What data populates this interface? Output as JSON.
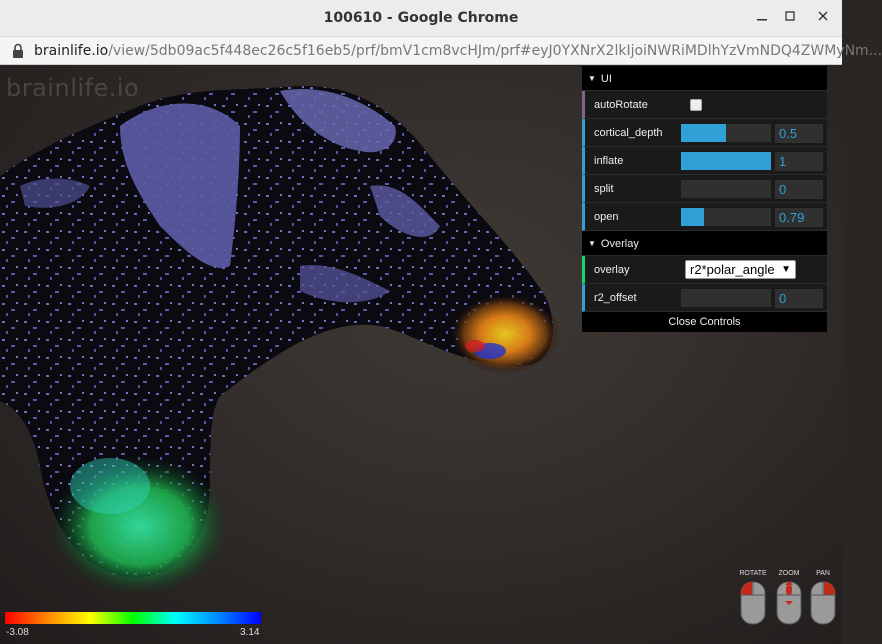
{
  "window": {
    "title": "100610 - Google Chrome",
    "minimize_icon": "minimize-icon",
    "maximize_icon": "maximize-icon",
    "close_icon": "close-icon"
  },
  "urlbar": {
    "host": "brainlife.io",
    "path": "/view/5db09ac5f448ec26c5f16eb5/prf/bmV1cm8vcHJm/prf#eyJ0YXNrX2lkIjoiNWRiMDlhYzVmNDQ4ZWMyNm...",
    "lock_icon": "lock-icon"
  },
  "viewport": {
    "wordmark": "brainlife.io"
  },
  "controls": {
    "ui_folder": "UI",
    "overlay_folder": "Overlay",
    "autorotate_label": "autoRotate",
    "autorotate_checked": false,
    "cortical_depth_label": "cortical_depth",
    "cortical_depth_value": "0.5",
    "cortical_depth_fraction": 0.5,
    "inflate_label": "inflate",
    "inflate_value": "1",
    "inflate_fraction": 1.0,
    "split_label": "split",
    "split_value": "0",
    "split_fraction": 0.0,
    "open_label": "open",
    "open_value": "0.79",
    "open_fraction": 0.25,
    "overlay_label": "overlay",
    "overlay_value": "r2*polar_angle",
    "r2_offset_label": "r2_offset",
    "r2_offset_value": "0",
    "r2_offset_fraction": 0.0,
    "close_label": "Close Controls"
  },
  "colorbar": {
    "min": "-3.08",
    "max": "3.14"
  },
  "mouse_hints": {
    "rotate": "ROTATE",
    "zoom": "ZOOM",
    "pan": "PAN"
  }
}
